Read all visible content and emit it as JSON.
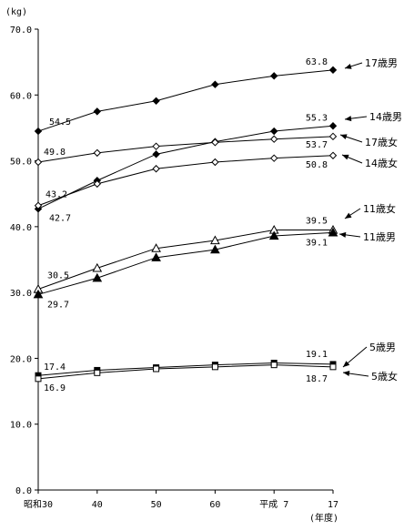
{
  "chart_data": {
    "type": "line",
    "y_unit": "(kg)",
    "x_unit": "(年度)",
    "ylim": [
      0,
      70
    ],
    "y_ticks": [
      "0.0",
      "10.0",
      "20.0",
      "30.0",
      "40.0",
      "50.0",
      "60.0",
      "70.0"
    ],
    "categories": [
      "昭和30",
      "40",
      "50",
      "60",
      "平成 7",
      "17"
    ],
    "grid": false,
    "series": [
      {
        "name": "17歳男",
        "marker": "diamond-filled",
        "values": [
          54.5,
          57.5,
          59.1,
          61.6,
          62.9,
          63.8
        ],
        "labels": [
          {
            "index": 0,
            "text": "54.5"
          },
          {
            "index": 5,
            "text": "63.8"
          }
        ]
      },
      {
        "name": "14歳男",
        "marker": "diamond-filled",
        "values": [
          42.7,
          47.0,
          51.0,
          52.9,
          54.5,
          55.3
        ],
        "labels": [
          {
            "index": 0,
            "text": "42.7"
          },
          {
            "index": 5,
            "text": "55.3"
          }
        ]
      },
      {
        "name": "17歳女",
        "marker": "diamond-open",
        "values": [
          49.8,
          51.2,
          52.2,
          52.8,
          53.3,
          53.7
        ],
        "labels": [
          {
            "index": 0,
            "text": "49.8"
          },
          {
            "index": 5,
            "text": "53.7"
          }
        ]
      },
      {
        "name": "14歳女",
        "marker": "diamond-open",
        "values": [
          43.2,
          46.5,
          48.8,
          49.8,
          50.4,
          50.8
        ],
        "labels": [
          {
            "index": 0,
            "text": "43.2"
          },
          {
            "index": 5,
            "text": "50.8"
          }
        ]
      },
      {
        "name": "11歳女",
        "marker": "triangle-open",
        "values": [
          30.5,
          33.7,
          36.7,
          37.9,
          39.5,
          39.5
        ],
        "labels": [
          {
            "index": 0,
            "text": "30.5"
          },
          {
            "index": 5,
            "text": "39.5"
          }
        ]
      },
      {
        "name": "11歳男",
        "marker": "triangle-filled",
        "values": [
          29.7,
          32.2,
          35.3,
          36.5,
          38.6,
          39.1
        ],
        "labels": [
          {
            "index": 0,
            "text": "29.7"
          },
          {
            "index": 5,
            "text": "39.1"
          }
        ]
      },
      {
        "name": "5歳男",
        "marker": "square-filled",
        "values": [
          17.4,
          18.2,
          18.6,
          19.0,
          19.3,
          19.1
        ],
        "labels": [
          {
            "index": 0,
            "text": "17.4"
          },
          {
            "index": 5,
            "text": "19.1"
          }
        ]
      },
      {
        "name": "5歳女",
        "marker": "square-open",
        "values": [
          16.9,
          17.8,
          18.4,
          18.7,
          19.0,
          18.7
        ],
        "labels": [
          {
            "index": 0,
            "text": "16.9"
          },
          {
            "index": 5,
            "text": "18.7"
          }
        ]
      }
    ]
  }
}
